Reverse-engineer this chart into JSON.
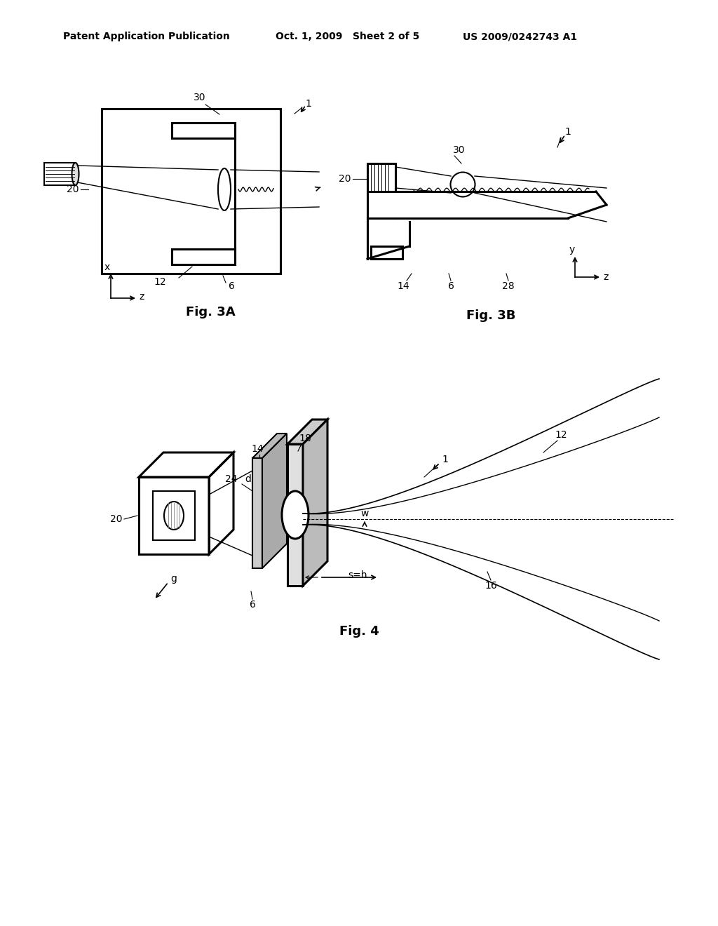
{
  "background_color": "#ffffff",
  "header_left": "Patent Application Publication",
  "header_mid": "Oct. 1, 2009   Sheet 2 of 5",
  "header_right": "US 2009/0242743 A1",
  "fig3a_label": "Fig. 3A",
  "fig3b_label": "Fig. 3B",
  "fig4_label": "Fig. 4",
  "line_color": "#000000",
  "lw": 1.5,
  "lw_thick": 2.2
}
